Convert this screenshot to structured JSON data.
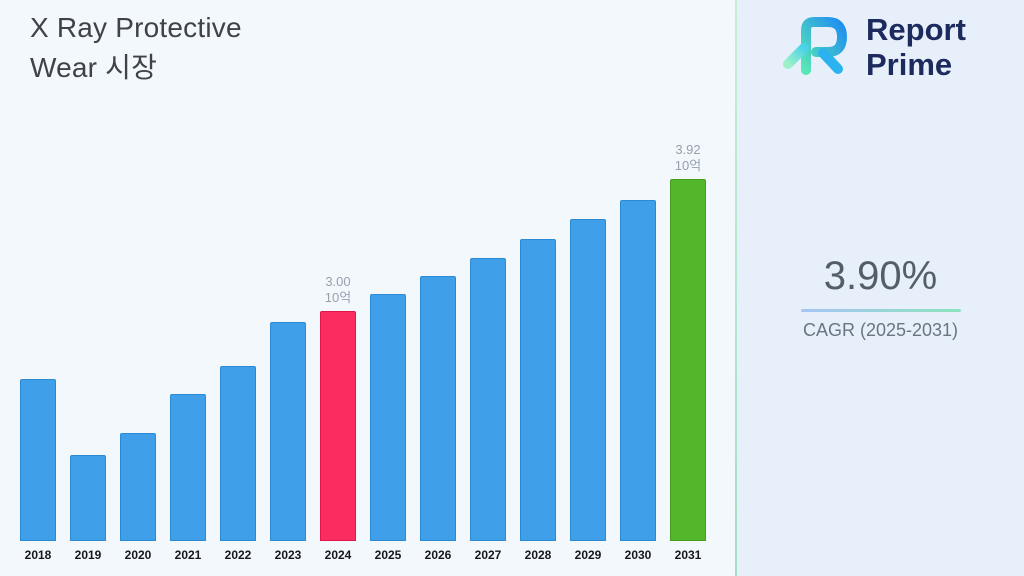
{
  "title": {
    "line1": "X Ray Protective",
    "line2": "Wear 시장"
  },
  "logo": {
    "line1": "Report",
    "line2": "Prime"
  },
  "cagr": {
    "value": "3.90%",
    "label": "CAGR (2025-2031)"
  },
  "chart_data": {
    "type": "bar",
    "title": "X Ray Protective Wear 시장",
    "xlabel": "",
    "ylabel": "",
    "unit": "10억",
    "grid": false,
    "legend": false,
    "categories": [
      "2018",
      "2019",
      "2020",
      "2021",
      "2022",
      "2023",
      "2024",
      "2025",
      "2026",
      "2027",
      "2028",
      "2029",
      "2030",
      "2031"
    ],
    "values": [
      2.53,
      2.0,
      2.15,
      2.42,
      2.62,
      2.92,
      3.0,
      3.12,
      3.24,
      3.37,
      3.5,
      3.64,
      3.77,
      3.92
    ],
    "ylim": [
      1.4,
      4.05
    ],
    "annotations": [
      {
        "category": "2024",
        "lines": [
          "3.00",
          "10억"
        ]
      },
      {
        "category": "2031",
        "lines": [
          "3.92",
          "10억"
        ]
      }
    ],
    "bar_colors": {
      "default": "#3F9FE8",
      "2024": "#FB2D60",
      "2031": "#54B62B"
    },
    "bar_border_colors": {
      "default": "#2B8AD4",
      "2024": "#E0174B",
      "2031": "#459C1E"
    }
  }
}
